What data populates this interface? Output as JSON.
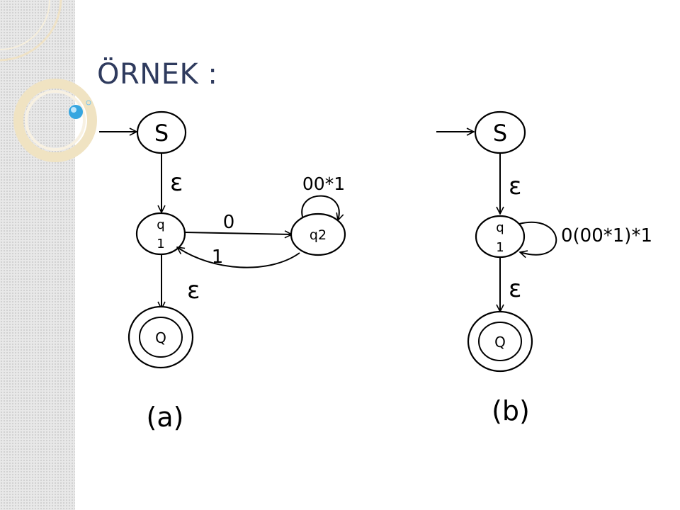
{
  "slide": {
    "title": "ÖRNEK :"
  },
  "diagram_a": {
    "caption": "(a)",
    "states": {
      "s": "S",
      "q1_line1": "q",
      "q1_line2": "1",
      "q2": "q2",
      "final": "Q"
    },
    "edges": {
      "s_to_q1": "ε",
      "q1_to_q2": "0",
      "q2_to_q1": "1",
      "q2_loop": "00*1",
      "q1_to_final": "ε"
    }
  },
  "diagram_b": {
    "caption": "(b)",
    "states": {
      "s": "S",
      "q1_line1": "q",
      "q1_line2": "1",
      "final": "Q"
    },
    "edges": {
      "s_to_q1": "ε",
      "q1_loop": "0(00*1)*1",
      "q1_to_final": "ε"
    }
  },
  "colors": {
    "title": "#2f3b5e",
    "decoration_ring": "#f0e3c2",
    "decoration_bubble": "#37a6e0"
  }
}
